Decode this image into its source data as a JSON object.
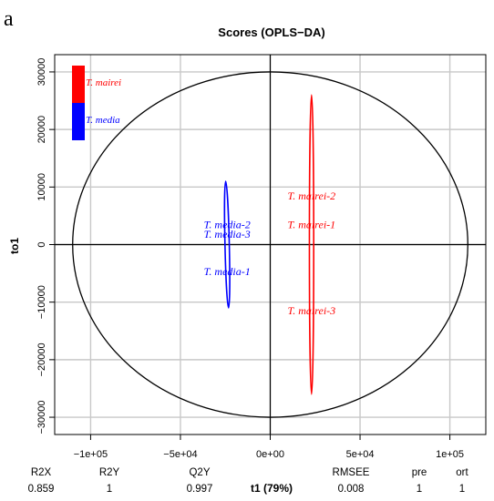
{
  "panel_letter": "a",
  "chart_data": {
    "type": "scatter",
    "title": "Scores (OPLS−DA)",
    "xlabel": "t1 (79%)",
    "ylabel": "to1",
    "xlim": [
      -120000,
      120000
    ],
    "ylim": [
      -33000,
      33000
    ],
    "xticks": [
      -100000,
      -50000,
      0,
      50000,
      100000
    ],
    "xtick_labels": [
      "−1e+05",
      "−5e+04",
      "0e+00",
      "5e+04",
      "1e+05"
    ],
    "yticks": [
      -30000,
      -20000,
      -10000,
      0,
      10000,
      20000,
      30000
    ],
    "ytick_labels": [
      "−30000",
      "−20000",
      "−10000",
      "0",
      "10000",
      "20000",
      "30000"
    ],
    "grid": true,
    "legend_position": "top-left",
    "hotelling_ellipse": {
      "rx": 110000,
      "ry": 30000
    },
    "series": [
      {
        "name": "T. mairei",
        "color": "#ff0000",
        "ellipse": {
          "cx": 23000,
          "cy": 0,
          "rx": 1200,
          "ry": 26000
        },
        "points": [
          {
            "label": "T. mairei-2",
            "x": 23000,
            "y": 8500
          },
          {
            "label": "T. mairei-1",
            "x": 23000,
            "y": 3500
          },
          {
            "label": "T. mairei-3",
            "x": 23000,
            "y": -11500
          }
        ]
      },
      {
        "name": "T. media",
        "color": "#0000ff",
        "ellipse": {
          "cx": -24000,
          "cy": 0,
          "rx": 1200,
          "ry": 11000,
          "tilt_deg": -1.3
        },
        "points": [
          {
            "label": "T. media-2",
            "x": -24000,
            "y": 3500
          },
          {
            "label": "T. media-3",
            "x": -24000,
            "y": 1800
          },
          {
            "label": "T. media-1",
            "x": -24000,
            "y": -4700
          }
        ]
      }
    ],
    "stats": [
      {
        "name": "R2X",
        "value": "0.859"
      },
      {
        "name": "R2Y",
        "value": "1"
      },
      {
        "name": "Q2Y",
        "value": "0.997"
      },
      {
        "name": "RMSEE",
        "value": "0.008"
      },
      {
        "name": "pre",
        "value": "1"
      },
      {
        "name": "ort",
        "value": "1"
      }
    ]
  }
}
